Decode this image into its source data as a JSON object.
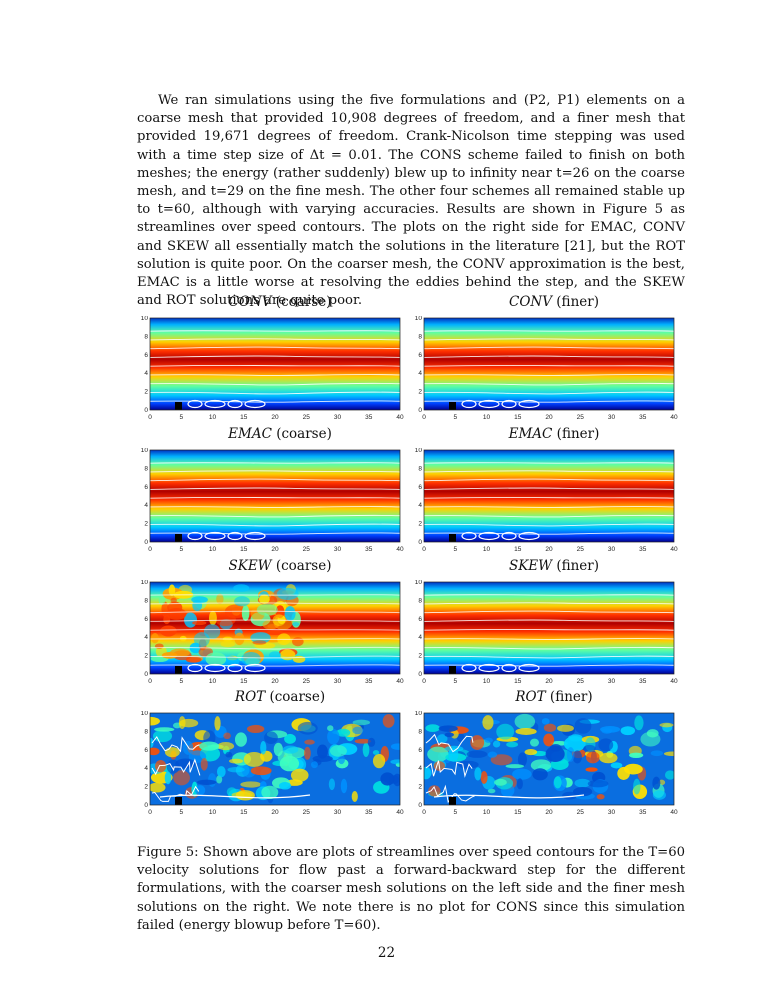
{
  "paragraph": "We ran simulations using the five formulations and (P2, P1) elements on a coarse mesh that provided 10,908 degrees of freedom, and a finer mesh that provided 19,671 degrees of freedom. Crank-Nicolson time stepping was used with a time step size of Δt = 0.01. The CONS scheme failed to finish on both meshes; the energy (rather suddenly) blew up to infinity near t=26 on the coarse mesh, and t=29 on the fine mesh. The other four schemes all remained stable up to t=60, although with varying accuracies. Results are shown in Figure 5 as streamlines over speed contours. The plots on the right side for EMAC, CONV and SKEW all essentially match the solutions in the literature [21], but the ROT solution is quite poor. On the coarser mesh, the CONV approximation is the best, EMAC is a little worse at resolving the eddies behind the step, and the SKEW and ROT solutions are quite poor.",
  "panels": [
    {
      "scheme": "CONV",
      "mesh": "(coarse)",
      "kind": "smooth"
    },
    {
      "scheme": "CONV",
      "mesh": "(finer)",
      "kind": "smooth"
    },
    {
      "scheme": "EMAC",
      "mesh": "(coarse)",
      "kind": "smooth"
    },
    {
      "scheme": "EMAC",
      "mesh": "(finer)",
      "kind": "smooth"
    },
    {
      "scheme": "SKEW",
      "mesh": "(coarse)",
      "kind": "noisy"
    },
    {
      "scheme": "SKEW",
      "mesh": "(finer)",
      "kind": "smooth"
    },
    {
      "scheme": "ROT",
      "mesh": "(coarse)",
      "kind": "blotchy"
    },
    {
      "scheme": "ROT",
      "mesh": "(finer)",
      "kind": "blotchy"
    }
  ],
  "axes": {
    "x_ticks": [
      "0",
      "5",
      "10",
      "15",
      "20",
      "25",
      "30",
      "35",
      "40"
    ],
    "y_ticks": [
      "0",
      "2",
      "4",
      "6",
      "8",
      "10"
    ]
  },
  "caption": "Figure 5: Shown above are plots of streamlines over speed contours for the T=60 velocity solutions for flow past a forward-backward step for the different formulations, with the coarser mesh solutions on the left side and the finer mesh solutions on the right. We note there is no plot for CONS since this simulation failed (energy blowup before T=60).",
  "page_number": "22"
}
